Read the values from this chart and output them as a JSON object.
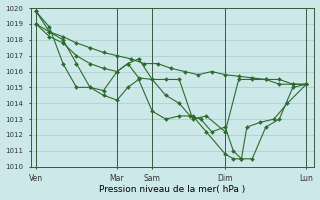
{
  "xlabel": "Pression niveau de la mer( hPa )",
  "bg_color": "#cce8e8",
  "grid_color": "#aacccc",
  "line_color": "#2d6b2d",
  "ylim": [
    1010,
    1020
  ],
  "ytick_min": 1010,
  "ytick_max": 1020,
  "xlim": [
    0,
    10.5
  ],
  "xtick_labels": [
    "Ven",
    "Mar",
    "Sam",
    "Dim",
    "Lun"
  ],
  "xtick_positions": [
    0.2,
    3.2,
    4.5,
    7.2,
    10.2
  ],
  "vline_positions": [
    0.2,
    3.2,
    4.5,
    7.2,
    10.2
  ],
  "series": [
    {
      "x": [
        0.2,
        0.7,
        1.2,
        1.7,
        2.2,
        2.7,
        3.2,
        3.7,
        4.2,
        4.7,
        5.2,
        5.7,
        6.2,
        6.7,
        7.2,
        7.7,
        8.2,
        8.7,
        9.2,
        9.7,
        10.2
      ],
      "y": [
        1019.0,
        1018.5,
        1018.2,
        1017.8,
        1017.5,
        1017.2,
        1017.0,
        1016.8,
        1016.5,
        1016.5,
        1016.2,
        1016.0,
        1015.8,
        1016.0,
        1015.8,
        1015.7,
        1015.6,
        1015.5,
        1015.5,
        1015.2,
        1015.2
      ]
    },
    {
      "x": [
        0.2,
        0.7,
        1.2,
        1.7,
        2.2,
        2.7,
        3.2,
        3.6,
        4.0,
        4.5,
        5.0,
        5.5,
        6.0,
        6.5,
        7.2,
        7.7,
        8.2,
        8.7,
        9.2,
        9.7,
        10.2
      ],
      "y": [
        1019.0,
        1018.2,
        1017.8,
        1017.0,
        1016.5,
        1016.2,
        1016.0,
        1016.5,
        1016.8,
        1015.5,
        1015.5,
        1015.5,
        1013.0,
        1013.2,
        1012.2,
        1015.5,
        1015.5,
        1015.5,
        1015.2,
        1015.2,
        1015.2
      ]
    },
    {
      "x": [
        0.2,
        0.7,
        1.2,
        1.7,
        2.2,
        2.7,
        3.2,
        3.6,
        4.0,
        4.5,
        5.0,
        5.5,
        5.9,
        6.3,
        6.7,
        7.2,
        7.5,
        7.8,
        8.2,
        8.7,
        9.2,
        9.7,
        10.2
      ],
      "y": [
        1019.8,
        1018.5,
        1018.0,
        1016.5,
        1015.0,
        1014.8,
        1016.0,
        1016.5,
        1015.6,
        1015.5,
        1014.5,
        1014.0,
        1013.2,
        1013.0,
        1012.2,
        1012.5,
        1011.0,
        1010.5,
        1010.5,
        1012.5,
        1013.0,
        1015.0,
        1015.2
      ]
    },
    {
      "x": [
        0.2,
        0.7,
        1.2,
        1.7,
        2.2,
        2.7,
        3.2,
        3.6,
        4.0,
        4.5,
        5.0,
        5.5,
        6.0,
        6.5,
        7.2,
        7.5,
        7.8,
        8.0,
        8.5,
        9.0,
        9.5,
        10.2
      ],
      "y": [
        1019.8,
        1018.8,
        1016.5,
        1015.0,
        1015.0,
        1014.5,
        1014.2,
        1015.0,
        1015.5,
        1013.5,
        1013.0,
        1013.2,
        1013.2,
        1012.2,
        1010.8,
        1010.5,
        1010.5,
        1012.5,
        1012.8,
        1013.0,
        1014.0,
        1015.2
      ]
    }
  ]
}
